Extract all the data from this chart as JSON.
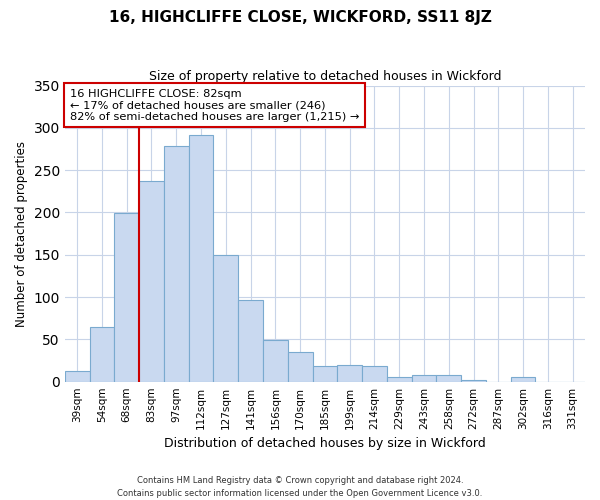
{
  "title": "16, HIGHCLIFFE CLOSE, WICKFORD, SS11 8JZ",
  "subtitle": "Size of property relative to detached houses in Wickford",
  "xlabel": "Distribution of detached houses by size in Wickford",
  "ylabel": "Number of detached properties",
  "categories": [
    "39sqm",
    "54sqm",
    "68sqm",
    "83sqm",
    "97sqm",
    "112sqm",
    "127sqm",
    "141sqm",
    "156sqm",
    "170sqm",
    "185sqm",
    "199sqm",
    "214sqm",
    "229sqm",
    "243sqm",
    "258sqm",
    "272sqm",
    "287sqm",
    "302sqm",
    "316sqm",
    "331sqm"
  ],
  "values": [
    13,
    65,
    199,
    237,
    279,
    291,
    150,
    96,
    49,
    35,
    19,
    20,
    19,
    5,
    8,
    8,
    2,
    0,
    5,
    0,
    0
  ],
  "bar_color": "#c9d9f0",
  "bar_edge_color": "#7aaacf",
  "vline_color": "#cc0000",
  "annotation_line1": "16 HIGHCLIFFE CLOSE: 82sqm",
  "annotation_line2": "← 17% of detached houses are smaller (246)",
  "annotation_line3": "82% of semi-detached houses are larger (1,215) →",
  "annotation_box_color": "#ffffff",
  "annotation_box_edge": "#cc0000",
  "ylim": [
    0,
    350
  ],
  "yticks": [
    0,
    50,
    100,
    150,
    200,
    250,
    300,
    350
  ],
  "footer_line1": "Contains HM Land Registry data © Crown copyright and database right 2024.",
  "footer_line2": "Contains public sector information licensed under the Open Government Licence v3.0.",
  "bg_color": "#ffffff",
  "grid_color": "#c8d4e8"
}
